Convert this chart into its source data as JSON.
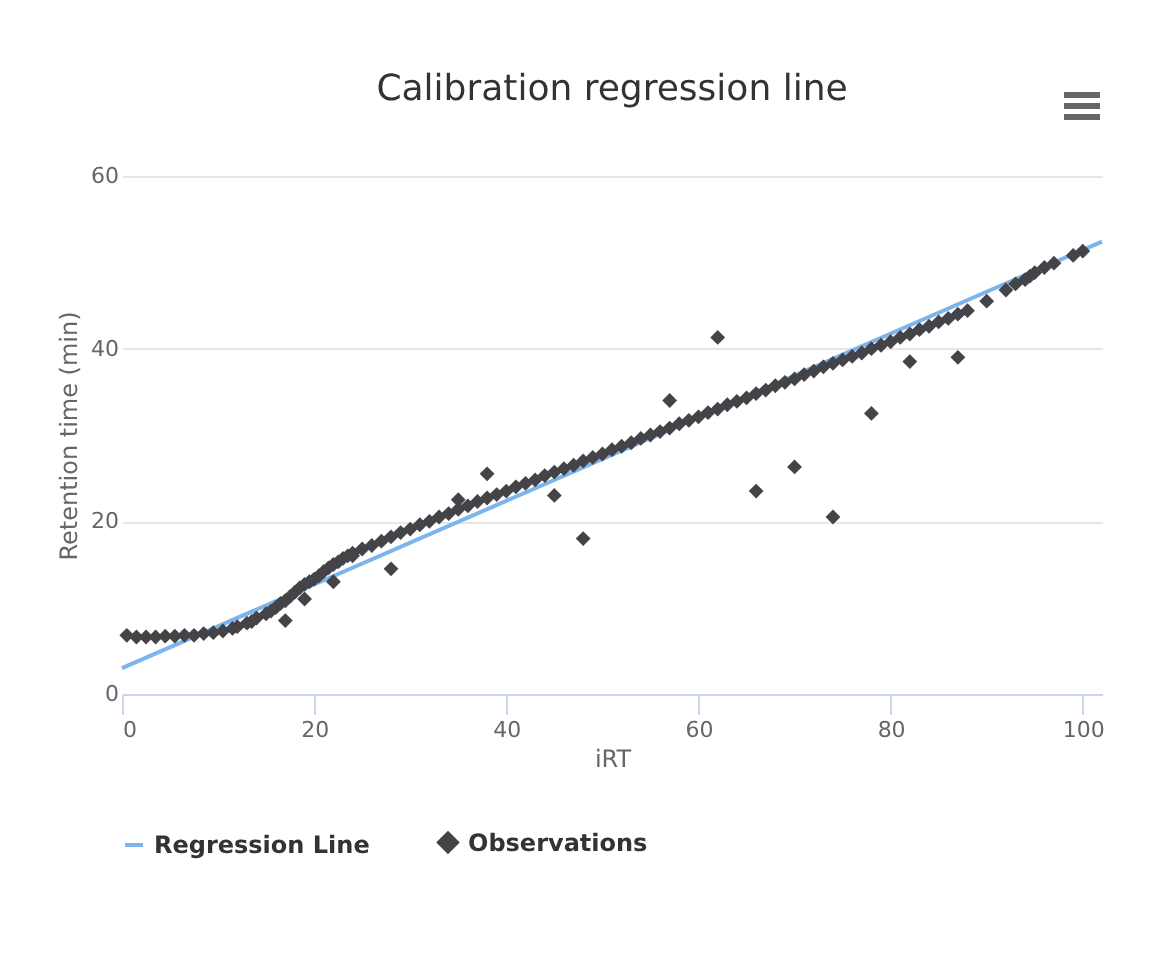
{
  "chart_data": {
    "type": "scatter",
    "title": "Calibration regression line",
    "xlabel": "iRT",
    "ylabel": "Retention time (min)",
    "xlim": [
      0,
      102
    ],
    "ylim": [
      0,
      60
    ],
    "xticks": [
      0,
      20,
      40,
      60,
      80,
      100
    ],
    "yticks": [
      0,
      20,
      40,
      60
    ],
    "grid": "y",
    "legend": "bottom",
    "marker": "diamond",
    "series": [
      {
        "name": "Regression Line",
        "type": "line",
        "marker": "none",
        "color": "#7cb5ec",
        "x": [
          0,
          102
        ],
        "values": [
          3,
          52.4
        ]
      },
      {
        "name": "Observations",
        "color": "#434348",
        "x": [
          0.5,
          1.5,
          2.5,
          3.5,
          4.5,
          5.5,
          6.5,
          7.5,
          8.5,
          9.5,
          10.5,
          11.5,
          12,
          13,
          13.5,
          14,
          15,
          15.5,
          16,
          16.5,
          17,
          17.5,
          18,
          18.5,
          19,
          19.5,
          20,
          20.5,
          21,
          21.5,
          22,
          22.5,
          23,
          23.5,
          24,
          25,
          26,
          27,
          28,
          29,
          30,
          31,
          32,
          33,
          34,
          35,
          36,
          37,
          38,
          39,
          40,
          41,
          42,
          43,
          44,
          45,
          46,
          47,
          48,
          49,
          50,
          51,
          52,
          53,
          54,
          55,
          56,
          57,
          58,
          59,
          60,
          61,
          62,
          63,
          64,
          65,
          66,
          67,
          68,
          69,
          70,
          71,
          72,
          73,
          74,
          75,
          76,
          77,
          78,
          79,
          80,
          81,
          82,
          83,
          84,
          85,
          86,
          87,
          88,
          90,
          92,
          93,
          94,
          94.5,
          95,
          96,
          97,
          99,
          100,
          17,
          19,
          22,
          28,
          38,
          45,
          48,
          62,
          66,
          70,
          74,
          78,
          87,
          82,
          24,
          35,
          57
        ],
        "values": [
          6.8,
          6.6,
          6.6,
          6.6,
          6.7,
          6.7,
          6.8,
          6.8,
          7,
          7.1,
          7.3,
          7.6,
          7.8,
          8.2,
          8.4,
          8.8,
          9.3,
          9.6,
          10,
          10.5,
          10.8,
          11.3,
          11.8,
          12.3,
          12.7,
          13,
          13.3,
          13.7,
          14.2,
          14.6,
          15,
          15.3,
          15.7,
          16,
          16.3,
          16.8,
          17.2,
          17.7,
          18.2,
          18.7,
          19.1,
          19.6,
          20,
          20.5,
          20.9,
          21.4,
          21.8,
          22.3,
          22.7,
          23.1,
          23.5,
          24,
          24.4,
          24.8,
          25.3,
          25.7,
          26.1,
          26.5,
          27,
          27.4,
          27.8,
          28.3,
          28.7,
          29.1,
          29.6,
          30,
          30.4,
          30.8,
          31.3,
          31.7,
          32.1,
          32.6,
          33,
          33.5,
          33.9,
          34.3,
          34.8,
          35.2,
          35.7,
          36.1,
          36.5,
          37,
          37.4,
          37.9,
          38.3,
          38.7,
          39.1,
          39.5,
          40,
          40.4,
          40.8,
          41.3,
          41.7,
          42.2,
          42.6,
          43.1,
          43.5,
          44,
          44.4,
          45.5,
          46.8,
          47.5,
          48,
          48.4,
          48.8,
          49.4,
          49.9,
          50.8,
          51.3,
          8.5,
          11,
          13,
          14.5,
          25.5,
          23,
          18,
          41.3,
          23.5,
          26.3,
          20.5,
          32.5,
          39,
          38.5,
          16,
          22.5,
          34
        ]
      }
    ]
  }
}
